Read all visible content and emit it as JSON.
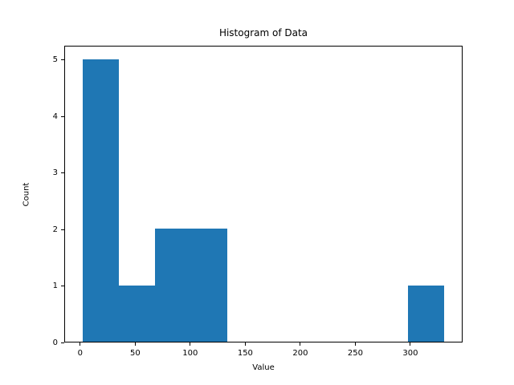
{
  "chart_data": {
    "type": "bar",
    "subtype": "histogram",
    "title": "Histogram of Data",
    "xlabel": "Value",
    "ylabel": "Count",
    "bin_edges": [
      2,
      34.9,
      67.8,
      100.7,
      133.6,
      166.5,
      199.4,
      232.3,
      265.2,
      298.1,
      331
    ],
    "counts": [
      5,
      1,
      2,
      2,
      0,
      0,
      0,
      0,
      0,
      1
    ],
    "bar_color": "#1f77b4",
    "xlim": [
      -14.45,
      347.45
    ],
    "ylim": [
      0,
      5.25
    ],
    "xticks": [
      0,
      50,
      100,
      150,
      200,
      250,
      300
    ],
    "yticks": [
      0,
      1,
      2,
      3,
      4,
      5
    ],
    "grid": false,
    "legend": null,
    "background_color": "#ffffff",
    "text_color": "#000000"
  }
}
